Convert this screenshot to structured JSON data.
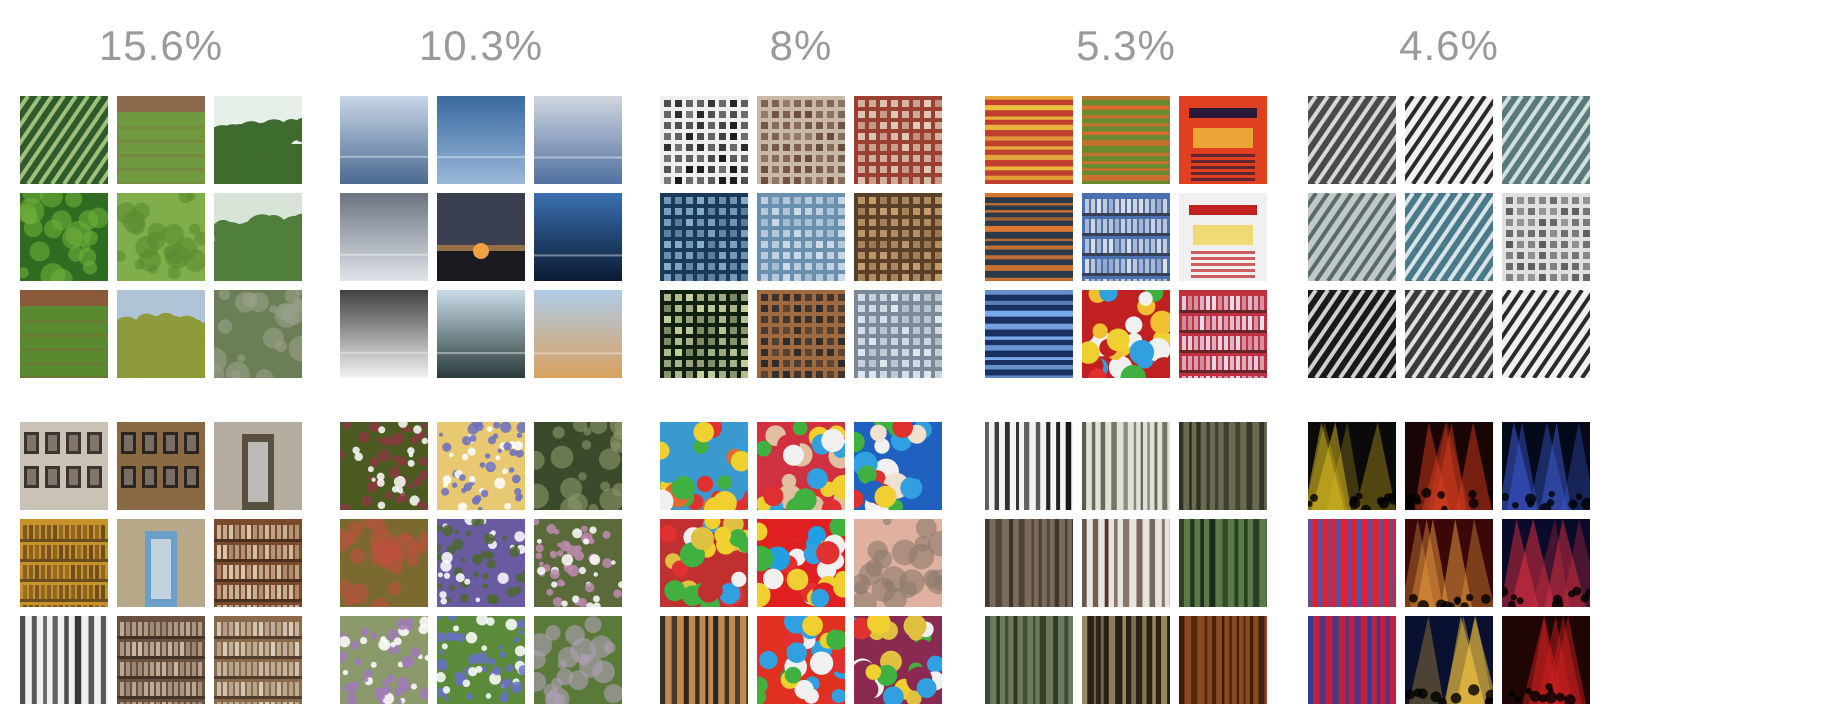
{
  "clusters": [
    {
      "percentage": "15.6%",
      "top": [
        {
          "icon": "diagonal-crop-rows-thumbnail",
          "colors": [
            "#2f5a2c",
            "#9fbf7a"
          ],
          "pattern": "diagonal"
        },
        {
          "icon": "green-field-thumbnail",
          "colors": [
            "#6f9a3f",
            "#8a6a4a"
          ],
          "pattern": "field"
        },
        {
          "icon": "bushes-sky-thumbnail",
          "colors": [
            "#3e6b2e",
            "#e6efe8"
          ],
          "pattern": "treeline"
        },
        {
          "icon": "dense-leaves-thumbnail",
          "colors": [
            "#2f6b20",
            "#6fae3a"
          ],
          "pattern": "blobs"
        },
        {
          "icon": "lawn-shadow-thumbnail",
          "colors": [
            "#7fae4a",
            "#5b8a30"
          ],
          "pattern": "blobs"
        },
        {
          "icon": "orchard-tree-thumbnail",
          "colors": [
            "#4f7f3a",
            "#d8e4d8"
          ],
          "pattern": "treeline"
        },
        {
          "icon": "farm-furrows-thumbnail",
          "colors": [
            "#5a8a30",
            "#8a5a3a"
          ],
          "pattern": "field"
        },
        {
          "icon": "yellow-tree-thumbnail",
          "colors": [
            "#8f9a3a",
            "#b0c4d8"
          ],
          "pattern": "treeline"
        },
        {
          "icon": "wild-shrubs-thumbnail",
          "colors": [
            "#6a7f55",
            "#9aa08a"
          ],
          "pattern": "blobs"
        }
      ],
      "bottom": [
        {
          "icon": "gallery-frames-thumbnail",
          "colors": [
            "#c9c2b5",
            "#3a3530"
          ],
          "pattern": "frames"
        },
        {
          "icon": "framed-wall-thumbnail",
          "colors": [
            "#8a6a45",
            "#2a2520"
          ],
          "pattern": "frames"
        },
        {
          "icon": "doorway-frame-thumbnail",
          "colors": [
            "#b5aea0",
            "#5a5040"
          ],
          "pattern": "doorway"
        },
        {
          "icon": "yellow-cabinet-thumbnail",
          "colors": [
            "#c8922a",
            "#6a4a20"
          ],
          "pattern": "shelves"
        },
        {
          "icon": "bookshelf-door-thumbnail",
          "colors": [
            "#b8a88a",
            "#6aa0c8"
          ],
          "pattern": "doorway"
        },
        {
          "icon": "wine-shelves-thumbnail",
          "colors": [
            "#7a4a2a",
            "#d8c8b0"
          ],
          "pattern": "shelves"
        },
        {
          "icon": "escalator-stripes-thumbnail",
          "colors": [
            "#f0f0f0",
            "#1a1a1a"
          ],
          "pattern": "vstripes"
        },
        {
          "icon": "bookcase-thumbnail",
          "colors": [
            "#6a5040",
            "#c8b8a0"
          ],
          "pattern": "shelves"
        },
        {
          "icon": "store-shelves-thumbnail",
          "colors": [
            "#8a6a4a",
            "#d8d0c0"
          ],
          "pattern": "shelves"
        }
      ]
    },
    {
      "percentage": "10.3%",
      "top": [
        {
          "icon": "cloudy-sky-sea-thumbnail",
          "colors": [
            "#c8d6e8",
            "#4a6a90"
          ],
          "pattern": "sky"
        },
        {
          "icon": "blue-horizon-thumbnail",
          "colors": [
            "#3a6aa0",
            "#9ab8d8"
          ],
          "pattern": "sky"
        },
        {
          "icon": "grey-sky-water-thumbnail",
          "colors": [
            "#d0d6e0",
            "#5070a0"
          ],
          "pattern": "sky"
        },
        {
          "icon": "dark-clouds-thumbnail",
          "colors": [
            "#6a7480",
            "#e0e4ea"
          ],
          "pattern": "sky"
        },
        {
          "icon": "sunset-thumbnail",
          "colors": [
            "#3a4050",
            "#f0a040"
          ],
          "pattern": "sunset"
        },
        {
          "icon": "night-sea-thumbnail",
          "colors": [
            "#3a70b0",
            "#0a1a30"
          ],
          "pattern": "sky"
        },
        {
          "icon": "fog-gradient-thumbnail",
          "colors": [
            "#404040",
            "#f4f4f4"
          ],
          "pattern": "sky"
        },
        {
          "icon": "island-lake-thumbnail",
          "colors": [
            "#c8dce8",
            "#2a3a3a"
          ],
          "pattern": "sky"
        },
        {
          "icon": "desert-sky-thumbnail",
          "colors": [
            "#b0cce8",
            "#d8a060"
          ],
          "pattern": "sky"
        }
      ],
      "bottom": [
        {
          "icon": "olives-thumbnail",
          "colors": [
            "#4a5a20",
            "#8a3a40"
          ],
          "pattern": "dots"
        },
        {
          "icon": "confetti-dots-thumbnail",
          "colors": [
            "#e8c870",
            "#6a70c0"
          ],
          "pattern": "dots"
        },
        {
          "icon": "forest-floor-thumbnail",
          "colors": [
            "#3a4a2a",
            "#8a9a6a"
          ],
          "pattern": "blobs"
        },
        {
          "icon": "red-leaves-thumbnail",
          "colors": [
            "#7a6a30",
            "#c05040"
          ],
          "pattern": "blobs"
        },
        {
          "icon": "lavender-thumbnail",
          "colors": [
            "#6a5aa0",
            "#4a6a30"
          ],
          "pattern": "dots"
        },
        {
          "icon": "pink-blossoms-thumbnail",
          "colors": [
            "#5a6a3a",
            "#c08ab0"
          ],
          "pattern": "dots"
        },
        {
          "icon": "wildflowers-thumbnail",
          "colors": [
            "#8a9a6a",
            "#a07ab8"
          ],
          "pattern": "dots"
        },
        {
          "icon": "bluebells-thumbnail",
          "colors": [
            "#5a8a3a",
            "#6a70c8"
          ],
          "pattern": "dots"
        },
        {
          "icon": "meadow-thumbnail",
          "colors": [
            "#5a7a3a",
            "#b0a0b8"
          ],
          "pattern": "blobs"
        }
      ]
    },
    {
      "percentage": "8%",
      "top": [
        {
          "icon": "bw-windows-thumbnail",
          "colors": [
            "#f0f0f0",
            "#1a1a1a"
          ],
          "pattern": "windows"
        },
        {
          "icon": "townhouses-thumbnail",
          "colors": [
            "#c8b8a8",
            "#6a4a3a"
          ],
          "pattern": "windows"
        },
        {
          "icon": "brick-building-thumbnail",
          "colors": [
            "#9a4030",
            "#e0d0c0"
          ],
          "pattern": "windows"
        },
        {
          "icon": "glass-facade-thumbnail",
          "colors": [
            "#1a3a5a",
            "#8ab0d0"
          ],
          "pattern": "windows"
        },
        {
          "icon": "office-tower-thumbnail",
          "colors": [
            "#6a90b0",
            "#d0dce8"
          ],
          "pattern": "windows"
        },
        {
          "icon": "wooden-grid-thumbnail",
          "colors": [
            "#5a4028",
            "#c8a070"
          ],
          "pattern": "windows"
        },
        {
          "icon": "night-building-thumbnail",
          "colors": [
            "#102010",
            "#c8d0a0"
          ],
          "pattern": "windows"
        },
        {
          "icon": "streetlamp-facade-thumbnail",
          "colors": [
            "#a06a40",
            "#2a2a2a"
          ],
          "pattern": "windows"
        },
        {
          "icon": "skyscrapers-thumbnail",
          "colors": [
            "#7a8a9a",
            "#e0e8f0"
          ],
          "pattern": "windows"
        }
      ],
      "bottom": [
        {
          "icon": "ball-pit-thumbnail",
          "colors": [
            "#3a9ad0",
            "#e06a30"
          ],
          "pattern": "balls"
        },
        {
          "icon": "child-ball-pit-thumbnail",
          "colors": [
            "#d03040",
            "#e0c0a0"
          ],
          "pattern": "balls"
        },
        {
          "icon": "beach-balls-thumbnail",
          "colors": [
            "#2060c0",
            "#f0e0d0"
          ],
          "pattern": "balls"
        },
        {
          "icon": "easter-eggs-thumbnail",
          "colors": [
            "#c03030",
            "#e0c040"
          ],
          "pattern": "balls"
        },
        {
          "icon": "colorful-balls-thumbnail",
          "colors": [
            "#e02020",
            "#20a0e0"
          ],
          "pattern": "balls"
        },
        {
          "icon": "candy-box-thumbnail",
          "colors": [
            "#e0b0a0",
            "#8a7a6a"
          ],
          "pattern": "blobs"
        },
        {
          "icon": "mixer-knobs-thumbnail",
          "colors": [
            "#c08a50",
            "#1a1a1a"
          ],
          "pattern": "vstripes"
        },
        {
          "icon": "gumballs-thumbnail",
          "colors": [
            "#e03020",
            "#30a040"
          ],
          "pattern": "balls"
        },
        {
          "icon": "purple-eggs-thumbnail",
          "colors": [
            "#8a2a50",
            "#e0c040"
          ],
          "pattern": "balls"
        }
      ]
    },
    {
      "percentage": "5.3%",
      "top": [
        {
          "icon": "striped-fabric-thumbnail",
          "colors": [
            "#c04030",
            "#f0d040"
          ],
          "pattern": "hstripes"
        },
        {
          "icon": "yarn-stripes-thumbnail",
          "colors": [
            "#6a8a30",
            "#e06a30"
          ],
          "pattern": "hstripes"
        },
        {
          "icon": "event-poster-thumbnail",
          "colors": [
            "#e04020",
            "#2a1a3a"
          ],
          "pattern": "poster"
        },
        {
          "icon": "abstract-waves-thumbnail",
          "colors": [
            "#2a3a4a",
            "#e07a30"
          ],
          "pattern": "hstripes"
        },
        {
          "icon": "supermarket-shelf-thumbnail",
          "colors": [
            "#4a70b0",
            "#e0e0e0"
          ],
          "pattern": "shelves"
        },
        {
          "icon": "party-flyer-thumbnail",
          "colors": [
            "#f0f0f0",
            "#c02020"
          ],
          "pattern": "poster"
        },
        {
          "icon": "blue-lights-thumbnail",
          "colors": [
            "#1a3060",
            "#80b0f0"
          ],
          "pattern": "hstripes"
        },
        {
          "icon": "candy-poster-thumbnail",
          "colors": [
            "#c02020",
            "#f0c030"
          ],
          "pattern": "balls"
        },
        {
          "icon": "drink-shelves-thumbnail",
          "colors": [
            "#c03040",
            "#e0e0f0"
          ],
          "pattern": "shelves"
        }
      ],
      "bottom": [
        {
          "icon": "bw-icicles-thumbnail",
          "colors": [
            "#f4f4f4",
            "#101010"
          ],
          "pattern": "vstripes"
        },
        {
          "icon": "birch-trees-thumbnail",
          "colors": [
            "#e0e0d8",
            "#5a5a4a"
          ],
          "pattern": "vstripes"
        },
        {
          "icon": "forest-figure-thumbnail",
          "colors": [
            "#6a6a50",
            "#2a2a20"
          ],
          "pattern": "vstripes"
        },
        {
          "icon": "weathered-wood-thumbnail",
          "colors": [
            "#7a6a5a",
            "#3a3028"
          ],
          "pattern": "vstripes"
        },
        {
          "icon": "tree-bark-thumbnail",
          "colors": [
            "#e8e4e0",
            "#4a3020"
          ],
          "pattern": "vstripes"
        },
        {
          "icon": "bamboo-grove-thumbnail",
          "colors": [
            "#5a7a4a",
            "#1a2a1a"
          ],
          "pattern": "vstripes"
        },
        {
          "icon": "reeds-thumbnail",
          "colors": [
            "#6a7a5a",
            "#2a3020"
          ],
          "pattern": "vstripes"
        },
        {
          "icon": "dark-stalks-thumbnail",
          "colors": [
            "#2a2018",
            "#9a8a60"
          ],
          "pattern": "vstripes"
        },
        {
          "icon": "wood-grain-thumbnail",
          "colors": [
            "#8a4a20",
            "#3a1a08"
          ],
          "pattern": "vstripes"
        }
      ]
    },
    {
      "percentage": "4.6%",
      "top": [
        {
          "icon": "steel-roof-thumbnail",
          "colors": [
            "#4a4a4a",
            "#d8d8d8"
          ],
          "pattern": "diagonal"
        },
        {
          "icon": "bw-structure-thumbnail",
          "colors": [
            "#f0f0f0",
            "#2a2a2a"
          ],
          "pattern": "diagonal"
        },
        {
          "icon": "glass-ceiling-thumbnail",
          "colors": [
            "#5a7a7a",
            "#d0e0e0"
          ],
          "pattern": "diagonal"
        },
        {
          "icon": "lattice-roof-thumbnail",
          "colors": [
            "#c0c8c8",
            "#5a6a6a"
          ],
          "pattern": "diagonal"
        },
        {
          "icon": "curved-facade-thumbnail",
          "colors": [
            "#4a7a8a",
            "#d8e4e8"
          ],
          "pattern": "diagonal"
        },
        {
          "icon": "atrium-thumbnail",
          "colors": [
            "#e0e0e0",
            "#5a5a5a"
          ],
          "pattern": "windows"
        },
        {
          "icon": "shadow-pattern-thumbnail",
          "colors": [
            "#1a1a1a",
            "#d0d0d0"
          ],
          "pattern": "diagonal"
        },
        {
          "icon": "spiral-stair-thumbnail",
          "colors": [
            "#3a3a3a",
            "#e0e0e0"
          ],
          "pattern": "diagonal"
        },
        {
          "icon": "dome-pattern-thumbnail",
          "colors": [
            "#f0f0f0",
            "#2a2a2a"
          ],
          "pattern": "diagonal"
        }
      ],
      "bottom": [
        {
          "icon": "stage-lights-thumbnail",
          "colors": [
            "#0a0a0a",
            "#e0c020"
          ],
          "pattern": "concert"
        },
        {
          "icon": "red-concert-thumbnail",
          "colors": [
            "#1a0505",
            "#e04020"
          ],
          "pattern": "concert"
        },
        {
          "icon": "crowd-lights-thumbnail",
          "colors": [
            "#050a1a",
            "#4060e0"
          ],
          "pattern": "concert"
        },
        {
          "icon": "colored-panels-thumbnail",
          "colors": [
            "#e02030",
            "#3060c0"
          ],
          "pattern": "vstripes"
        },
        {
          "icon": "candles-red-thumbnail",
          "colors": [
            "#3a0808",
            "#f0a040"
          ],
          "pattern": "concert"
        },
        {
          "icon": "castle-fireworks-thumbnail",
          "colors": [
            "#0a0a2a",
            "#e03040"
          ],
          "pattern": "concert"
        },
        {
          "icon": "colorful-strips-thumbnail",
          "colors": [
            "#c02040",
            "#2040a0"
          ],
          "pattern": "vstripes"
        },
        {
          "icon": "lit-fountain-thumbnail",
          "colors": [
            "#0a1030",
            "#f0c040"
          ],
          "pattern": "concert"
        },
        {
          "icon": "red-stage-thumbnail",
          "colors": [
            "#200505",
            "#d02020"
          ],
          "pattern": "concert"
        }
      ]
    }
  ]
}
